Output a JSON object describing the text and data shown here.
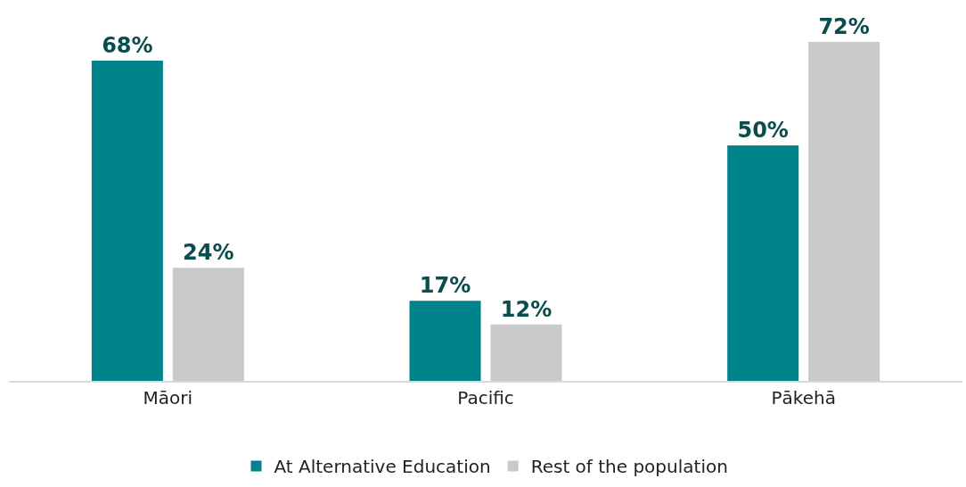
{
  "chart_data": {
    "type": "bar",
    "categories": [
      "Māori",
      "Pacific",
      "Pākehā"
    ],
    "ylim": [
      0,
      72
    ],
    "legend": "bottom",
    "series": [
      {
        "name": "At Alternative Education",
        "color": "#00838a",
        "values": [
          68,
          17,
          50
        ],
        "value_labels": [
          "68%",
          "17%",
          "50%"
        ]
      },
      {
        "name": "Rest of the population",
        "color": "#c8c9cb",
        "values": [
          24,
          12,
          72
        ],
        "value_labels": [
          "24%",
          "12%",
          "72%"
        ]
      }
    ]
  }
}
